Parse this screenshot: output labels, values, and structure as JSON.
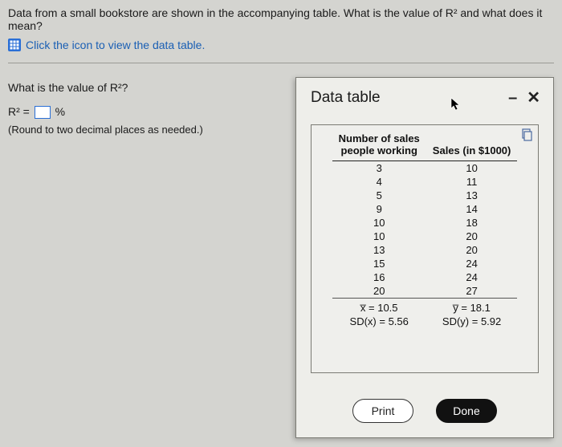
{
  "question_text": "Data from a small bookstore are shown in the accompanying table. What is the value of R² and what does it mean?",
  "datalink_text": "Click the icon to view the data table.",
  "left": {
    "prompt": "What is the value of R²?",
    "r_label_pre": "R² =",
    "r_label_post": "%",
    "hint": "(Round to two decimal places as needed.)"
  },
  "dialog": {
    "title": "Data table",
    "minimize": "–",
    "close": "✕",
    "print": "Print",
    "done": "Done",
    "table": {
      "col1_header_l1": "Number of sales",
      "col1_header_l2": "people working",
      "col2_header": "Sales (in $1000)",
      "rows": [
        [
          "3",
          "10"
        ],
        [
          "4",
          "11"
        ],
        [
          "5",
          "13"
        ],
        [
          "9",
          "14"
        ],
        [
          "10",
          "18"
        ],
        [
          "10",
          "20"
        ],
        [
          "13",
          "20"
        ],
        [
          "15",
          "24"
        ],
        [
          "16",
          "24"
        ],
        [
          "20",
          "27"
        ]
      ],
      "summary": [
        [
          "x̅ = 10.5",
          "y̅ = 18.1"
        ],
        [
          "SD(x) = 5.56",
          "SD(y) = 5.92"
        ]
      ]
    }
  }
}
